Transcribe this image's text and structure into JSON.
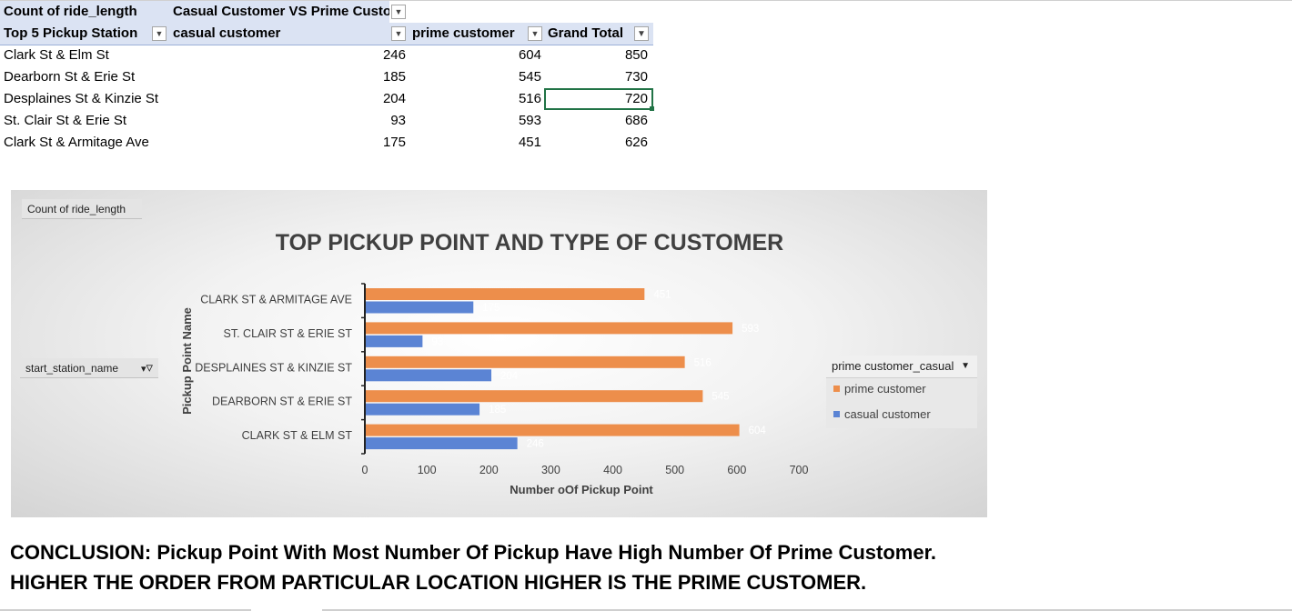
{
  "pivot": {
    "header_row1": {
      "measure": "Count of ride_length",
      "column_field": "Casual Customer VS Prime Custo"
    },
    "header_row2": {
      "row_field": "Top 5 Pickup Station",
      "col1": "casual customer",
      "col2": "prime customer",
      "col3": "Grand Total"
    },
    "rows": [
      {
        "station": "Clark St & Elm St",
        "casual": "246",
        "prime": "604",
        "total": "850"
      },
      {
        "station": "Dearborn St & Erie St",
        "casual": "185",
        "prime": "545",
        "total": "730"
      },
      {
        "station": "Desplaines St & Kinzie St",
        "casual": "204",
        "prime": "516",
        "total": "720"
      },
      {
        "station": "St. Clair St & Erie St",
        "casual": "93",
        "prime": "593",
        "total": "686"
      },
      {
        "station": "Clark St & Armitage Ave",
        "casual": "175",
        "prime": "451",
        "total": "626"
      }
    ],
    "selected_cell": "720"
  },
  "chart": {
    "value_field_button": "Count  of ride_length",
    "axis_field_button": "start_station_name",
    "legend_field_button": "prime customer_casual",
    "colors": {
      "prime": "#ed8e4b",
      "casual": "#5b84d4",
      "axis_text": "#404040"
    },
    "icons": [
      "dropdown-arrow-icon",
      "filter-icon"
    ]
  },
  "chart_data": {
    "type": "bar",
    "orientation": "horizontal",
    "title": "TOP PICKUP POINT AND TYPE OF CUSTOMER",
    "xlabel": "Number oOf Pickup Point",
    "ylabel": "Pickup Point Name",
    "categories": [
      "CLARK ST & ARMITAGE AVE",
      "ST. CLAIR ST & ERIE ST",
      "DESPLAINES ST & KINZIE ST",
      "DEARBORN ST & ERIE ST",
      "CLARK ST & ELM ST"
    ],
    "series": [
      {
        "name": "prime customer",
        "values": [
          451,
          593,
          516,
          545,
          604
        ]
      },
      {
        "name": "casual customer",
        "values": [
          175,
          93,
          204,
          185,
          246
        ]
      }
    ],
    "xlim": [
      0,
      700
    ],
    "xticks": [
      0,
      100,
      200,
      300,
      400,
      500,
      600,
      700
    ],
    "data_labels": true,
    "grid": false,
    "legend_position": "right"
  },
  "conclusion": {
    "line1": "CONCLUSION: Pickup Point With Most Number Of Pickup Have High Number Of Prime Customer.",
    "line2": "HIGHER THE ORDER FROM PARTICULAR LOCATION HIGHER IS THE PRIME CUSTOMER."
  }
}
